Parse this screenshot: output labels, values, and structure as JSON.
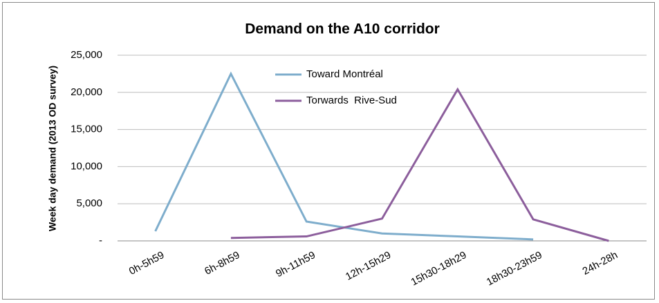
{
  "chart_data": {
    "type": "line",
    "title": "Demand on the A10 corridor",
    "y_label": "Week day demand (2013 OD survey)",
    "categories": [
      "0h-5h59",
      "6h-8h59",
      "9h-11h59",
      "12h-15h29",
      "15h30-18h29",
      "18h30-23h59",
      "24h-28h"
    ],
    "series": [
      {
        "name": "Toward Montréal",
        "color": "#7eadcc",
        "values": [
          1300,
          22500,
          2600,
          1000,
          600,
          200,
          null
        ]
      },
      {
        "name": "Torwards  Rive-Sud",
        "color": "#8c5e9c",
        "values": [
          null,
          400,
          600,
          3000,
          20400,
          2900,
          0
        ]
      }
    ],
    "ylim": [
      0,
      25000
    ],
    "yticks": [
      {
        "value": 0,
        "label": "-"
      },
      {
        "value": 5000,
        "label": "5,000"
      },
      {
        "value": 10000,
        "label": "10,000"
      },
      {
        "value": 15000,
        "label": "15,000"
      },
      {
        "value": 20000,
        "label": "20,000"
      },
      {
        "value": 25000,
        "label": "25,000"
      }
    ],
    "grid": true
  }
}
